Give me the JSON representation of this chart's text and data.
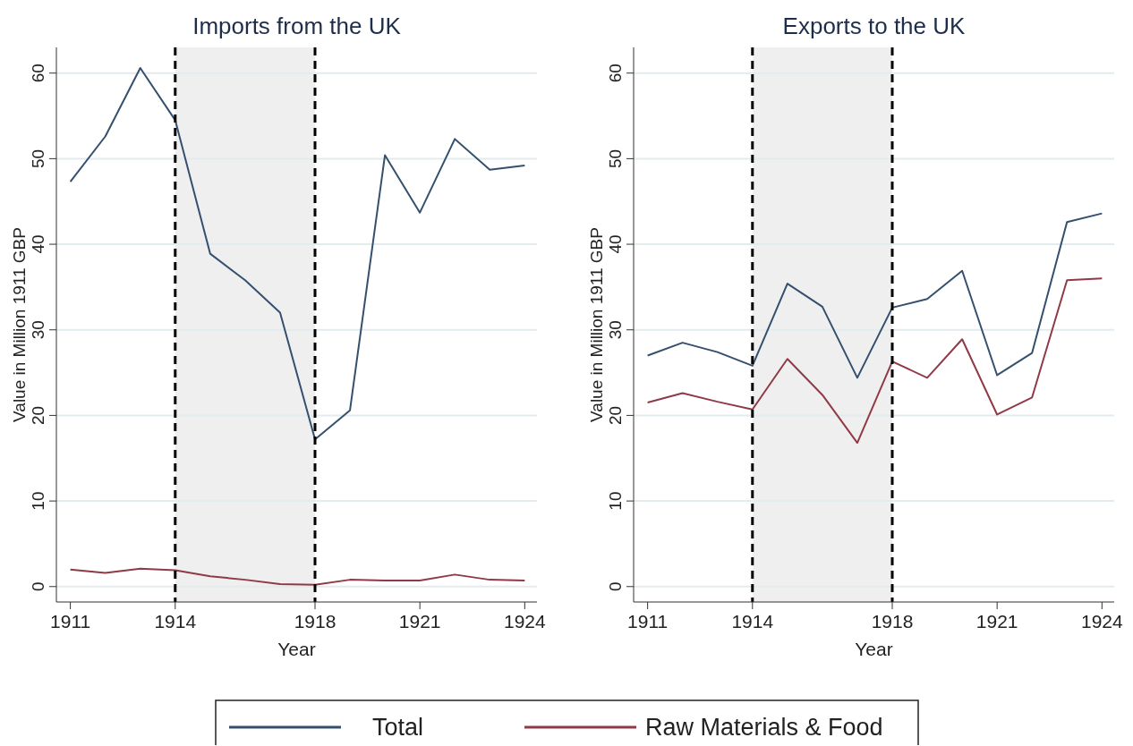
{
  "chart_data": [
    {
      "type": "line",
      "title": "Imports from the UK",
      "xlabel": "Year",
      "ylabel": "Value in Million 1911 GBP",
      "x": [
        1911,
        1912,
        1913,
        1914,
        1915,
        1916,
        1917,
        1918,
        1919,
        1920,
        1921,
        1922,
        1923,
        1924
      ],
      "series": [
        {
          "name": "Total",
          "color": "#34506e",
          "values": [
            47.3,
            52.6,
            60.6,
            54.5,
            38.9,
            35.8,
            32.0,
            17.2,
            20.6,
            50.4,
            43.7,
            52.3,
            48.7,
            49.2
          ]
        },
        {
          "name": "Raw Materials & Food",
          "color": "#8f3a46",
          "values": [
            2.0,
            1.6,
            2.1,
            1.9,
            1.2,
            0.8,
            0.3,
            0.2,
            0.8,
            0.7,
            0.7,
            1.4,
            0.8,
            0.7
          ]
        }
      ],
      "xlim": [
        1910.6,
        1924.35
      ],
      "xticks": [
        1911,
        1914,
        1918,
        1921,
        1924
      ],
      "ylim": [
        -1.8,
        63
      ],
      "yticks": [
        0,
        10,
        20,
        30,
        40,
        50,
        60
      ],
      "ref_lines": [
        {
          "axis": "x",
          "value": 1914,
          "color": "#000000",
          "line_style": "dashed"
        },
        {
          "axis": "x",
          "value": 1918,
          "color": "#000000",
          "line_style": "dashed"
        }
      ],
      "bands": [
        {
          "axis": "x",
          "from": 1914,
          "to": 1918,
          "color": "#efefef"
        }
      ],
      "grid": "y",
      "legend": "bottom",
      "marker": "none",
      "line_style": "solid"
    },
    {
      "type": "line",
      "title": "Exports to the UK",
      "xlabel": "Year",
      "ylabel": "Value in Million 1911 GBP",
      "x": [
        1911,
        1912,
        1913,
        1914,
        1915,
        1916,
        1917,
        1918,
        1919,
        1920,
        1921,
        1922,
        1923,
        1924
      ],
      "series": [
        {
          "name": "Total",
          "color": "#34506e",
          "values": [
            27.0,
            28.5,
            27.4,
            25.8,
            35.4,
            32.7,
            24.4,
            32.6,
            33.6,
            36.9,
            24.7,
            27.3,
            42.6,
            43.6
          ]
        },
        {
          "name": "Raw Materials & Food",
          "color": "#8f3a46",
          "values": [
            21.5,
            22.6,
            21.6,
            20.7,
            26.6,
            22.4,
            16.8,
            26.3,
            24.4,
            28.9,
            20.1,
            22.1,
            35.8,
            36.0
          ]
        }
      ],
      "xlim": [
        1910.6,
        1924.35
      ],
      "xticks": [
        1911,
        1914,
        1918,
        1921,
        1924
      ],
      "ylim": [
        -1.8,
        63
      ],
      "yticks": [
        0,
        10,
        20,
        30,
        40,
        50,
        60
      ],
      "ref_lines": [
        {
          "axis": "x",
          "value": 1914,
          "color": "#000000",
          "line_style": "dashed"
        },
        {
          "axis": "x",
          "value": 1918,
          "color": "#000000",
          "line_style": "dashed"
        }
      ],
      "bands": [
        {
          "axis": "x",
          "from": 1914,
          "to": 1918,
          "color": "#efefef"
        }
      ],
      "grid": "y",
      "legend": "bottom",
      "marker": "none",
      "line_style": "solid"
    }
  ]
}
